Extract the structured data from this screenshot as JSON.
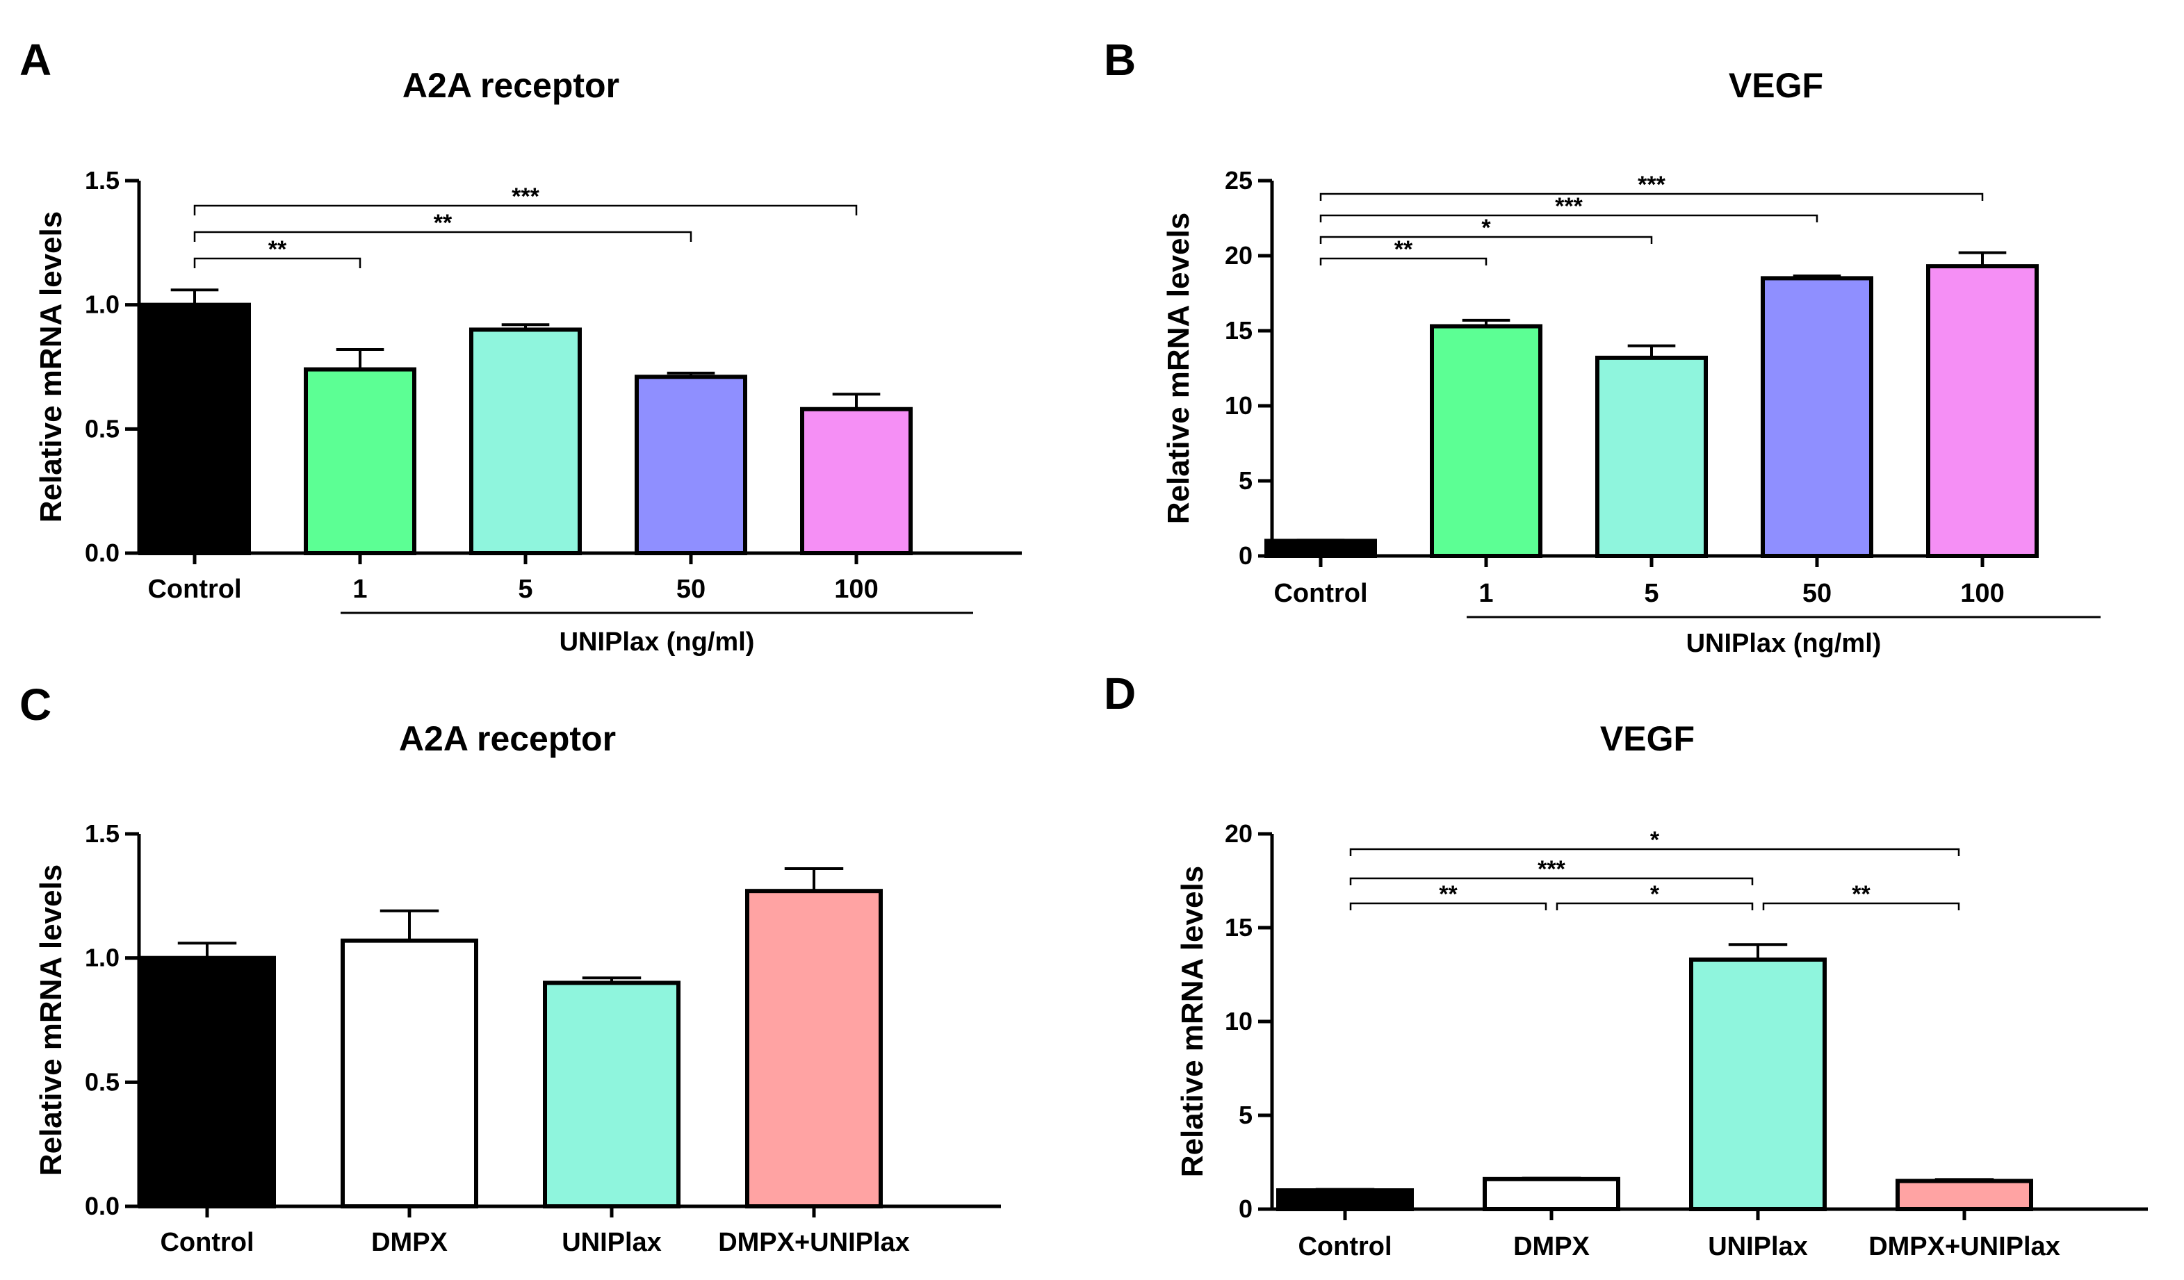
{
  "chart_data": [
    {
      "panel": "A",
      "type": "bar",
      "title": "A2A receptor",
      "ylabel": "Relative mRNA levels",
      "xlabel": "",
      "ylim": [
        0,
        1.5
      ],
      "yticks": [
        "0.0",
        "0.5",
        "1.0",
        "1.5"
      ],
      "ytick_values": [
        0,
        0.5,
        1.0,
        1.5
      ],
      "categories": [
        "Control",
        "1",
        "5",
        "50",
        "100"
      ],
      "values": [
        1.0,
        0.74,
        0.9,
        0.71,
        0.58
      ],
      "errors": [
        0.06,
        0.08,
        0.02,
        0.015,
        0.06
      ],
      "colors": [
        "#000000",
        "#5cff94",
        "#8ff5dd",
        "#8f8fff",
        "#f58ff5"
      ],
      "group_label": "UNIPlax (ng/ml)",
      "group_span": [
        1,
        4
      ],
      "significance": [
        {
          "from": 0,
          "to": 1,
          "label": "**"
        },
        {
          "from": 0,
          "to": 3,
          "label": "**"
        },
        {
          "from": 0,
          "to": 4,
          "label": "***"
        }
      ]
    },
    {
      "panel": "B",
      "type": "bar",
      "title": "VEGF",
      "ylabel": "Relative mRNA levels",
      "xlabel": "",
      "ylim": [
        0,
        25
      ],
      "yticks": [
        "0",
        "5",
        "10",
        "15",
        "20",
        "25"
      ],
      "ytick_values": [
        0,
        5,
        10,
        15,
        20,
        25
      ],
      "categories": [
        "Control",
        "1",
        "5",
        "50",
        "100"
      ],
      "values": [
        1.0,
        15.3,
        13.2,
        18.5,
        19.3
      ],
      "errors": [
        0.05,
        0.4,
        0.8,
        0.15,
        0.9
      ],
      "colors": [
        "#000000",
        "#5cff94",
        "#8ff5dd",
        "#8f8fff",
        "#f58ff5"
      ],
      "group_label": "UNIPlax (ng/ml)",
      "group_span": [
        1,
        4
      ],
      "significance": [
        {
          "from": 0,
          "to": 1,
          "label": "**"
        },
        {
          "from": 0,
          "to": 2,
          "label": "*"
        },
        {
          "from": 0,
          "to": 3,
          "label": "***"
        },
        {
          "from": 0,
          "to": 4,
          "label": "***"
        }
      ]
    },
    {
      "panel": "C",
      "type": "bar",
      "title": "A2A receptor",
      "ylabel": "Relative mRNA levels",
      "xlabel": "",
      "ylim": [
        0,
        1.5
      ],
      "yticks": [
        "0.0",
        "0.5",
        "1.0",
        "1.5"
      ],
      "ytick_values": [
        0,
        0.5,
        1.0,
        1.5
      ],
      "categories": [
        "Control",
        "DMPX",
        "UNIPlax",
        "DMPX+UNIPlax"
      ],
      "values": [
        1.0,
        1.07,
        0.9,
        1.27
      ],
      "errors": [
        0.06,
        0.12,
        0.02,
        0.09
      ],
      "colors": [
        "#000000",
        "#ffffff",
        "#8ff5dd",
        "#ffa3a3"
      ],
      "significance": []
    },
    {
      "panel": "D",
      "type": "bar",
      "title": "VEGF",
      "ylabel": "Relative mRNA levels",
      "xlabel": "",
      "ylim": [
        0,
        20
      ],
      "yticks": [
        "0",
        "5",
        "10",
        "15",
        "20"
      ],
      "ytick_values": [
        0,
        5,
        10,
        15,
        20
      ],
      "categories": [
        "Control",
        "DMPX",
        "UNIPlax",
        "DMPX+UNIPlax"
      ],
      "values": [
        1.0,
        1.6,
        13.3,
        1.5
      ],
      "errors": [
        0.05,
        0.05,
        0.8,
        0.08
      ],
      "colors": [
        "#000000",
        "#ffffff",
        "#8ff5dd",
        "#ffa3a3"
      ],
      "significance": [
        {
          "from": 0,
          "to": 1,
          "label": "**"
        },
        {
          "from": 1,
          "to": 2,
          "label": "*"
        },
        {
          "from": 2,
          "to": 3,
          "label": "**"
        },
        {
          "from": 0,
          "to": 2,
          "label": "***"
        },
        {
          "from": 0,
          "to": 3,
          "label": "*"
        }
      ]
    }
  ]
}
